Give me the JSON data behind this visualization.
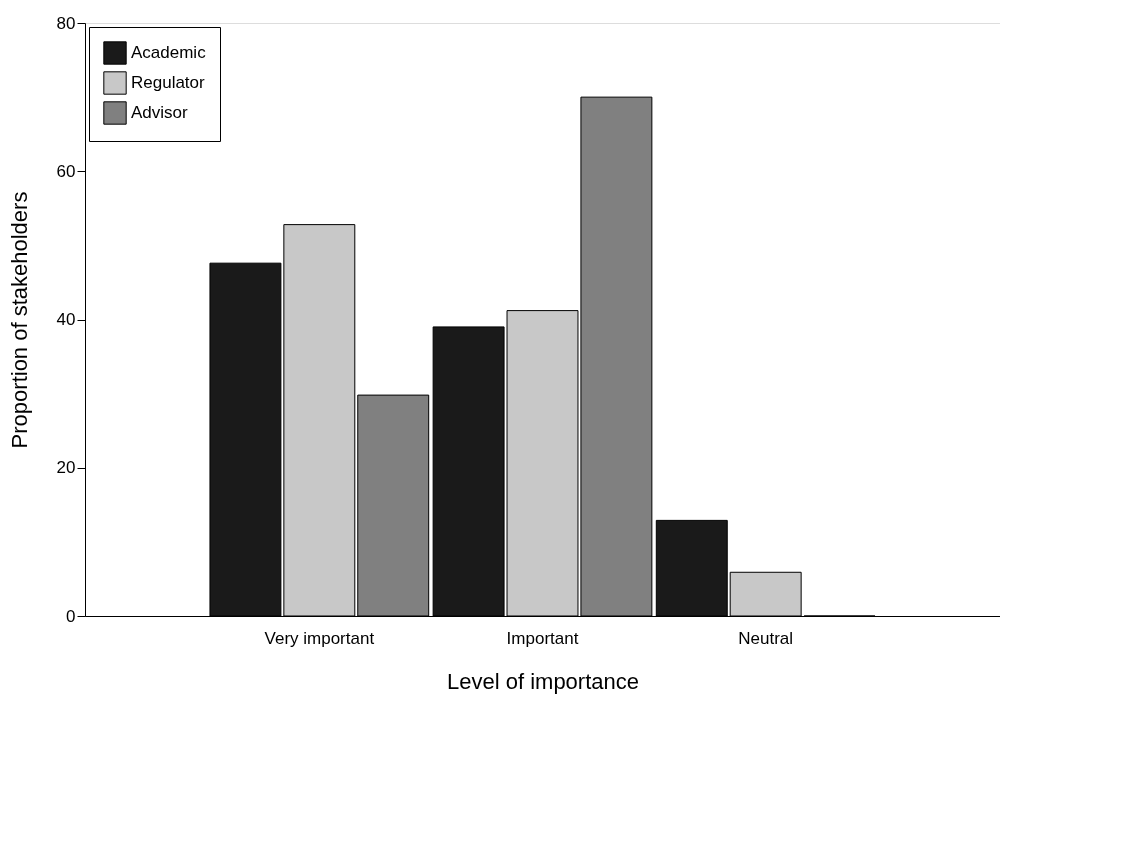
{
  "chart_data": {
    "type": "bar",
    "xlabel": "Level of importance",
    "ylabel": "Proportion of stakeholders",
    "categories": [
      "Very important",
      "Important",
      "Neutral"
    ],
    "series": [
      {
        "name": "Academic",
        "color": "#1a1a1a",
        "values": [
          47.6,
          39.0,
          12.9
        ]
      },
      {
        "name": "Regulator",
        "color": "#c8c8c8",
        "values": [
          52.8,
          41.2,
          5.9
        ]
      },
      {
        "name": "Advisor",
        "color": "#808080",
        "values": [
          29.8,
          70.0,
          0
        ]
      }
    ],
    "ylim": [
      0,
      80
    ],
    "yticks": [
      0,
      20,
      40,
      60,
      80
    ],
    "grid": false,
    "legend": "top left"
  }
}
